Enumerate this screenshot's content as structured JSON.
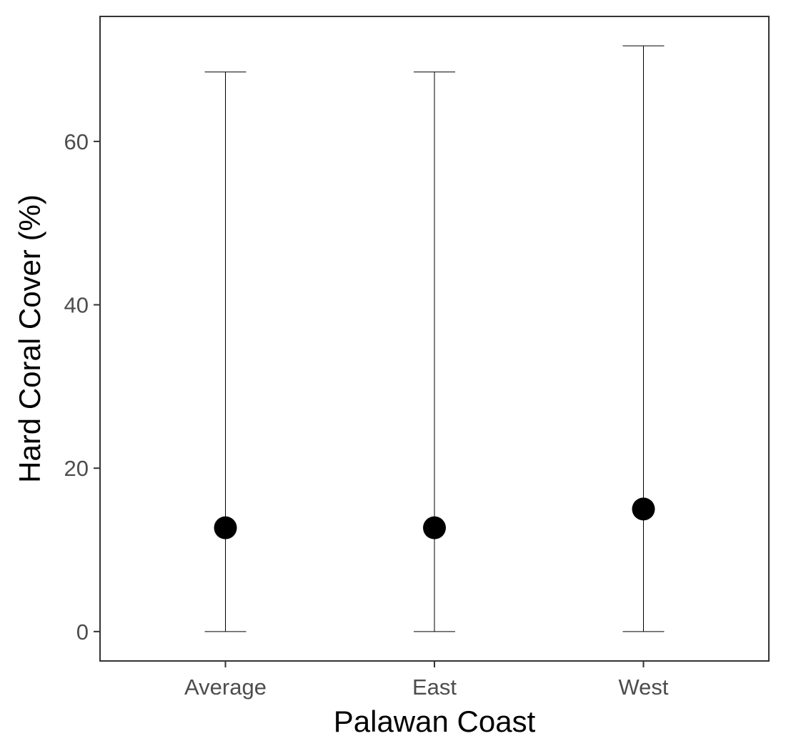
{
  "chart_data": {
    "type": "scatter",
    "title": "",
    "xlabel": "Palawan Coast",
    "ylabel": "Hard Coral Cover (%)",
    "categories": [
      "Average",
      "East",
      "West"
    ],
    "series": [
      {
        "values": [
          12.7,
          12.7,
          15.0
        ],
        "error_low": [
          0,
          0,
          0
        ],
        "error_high": [
          68.5,
          68.5,
          71.7
        ]
      }
    ],
    "ylim": [
      -3.6,
      75.3
    ],
    "yticks": [
      0,
      20,
      40,
      60
    ],
    "grid": false,
    "legend": "none",
    "colors": {
      "point": "#000000",
      "errorbar": "#000000",
      "frame": "#333333",
      "tick_text": "#4d4d4d"
    }
  }
}
